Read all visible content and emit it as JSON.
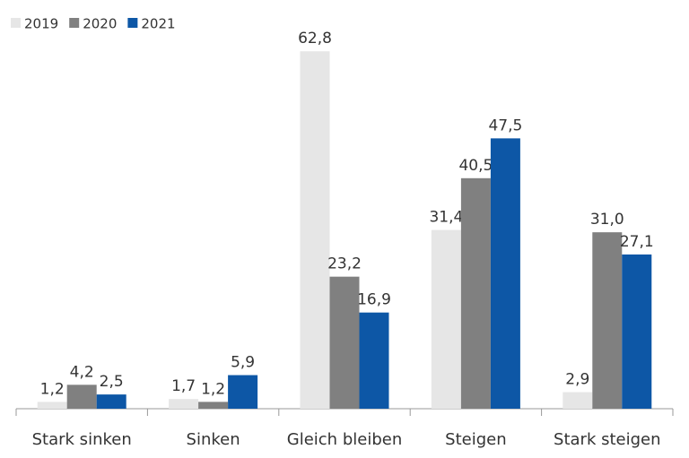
{
  "chart_data": {
    "type": "bar",
    "categories": [
      "Stark sinken",
      "Sinken",
      "Gleich bleiben",
      "Steigen",
      "Stark steigen"
    ],
    "series": [
      {
        "name": "2019",
        "color": "#e6e6e6",
        "values": [
          1.2,
          1.7,
          62.8,
          31.4,
          2.9
        ],
        "value_labels": [
          "1,2",
          "1,7",
          "62,8",
          "31,4",
          "2,9"
        ]
      },
      {
        "name": "2020",
        "color": "#808080",
        "values": [
          4.2,
          1.2,
          23.2,
          40.5,
          31.0
        ],
        "value_labels": [
          "4,2",
          "1,2",
          "23,2",
          "40,5",
          "31,0"
        ]
      },
      {
        "name": "2021",
        "color": "#0d57a6",
        "values": [
          2.5,
          5.9,
          16.9,
          47.5,
          27.1
        ],
        "value_labels": [
          "2,5",
          "5,9",
          "16,9",
          "47,5",
          "27,1"
        ]
      }
    ],
    "legend": "top-left"
  }
}
